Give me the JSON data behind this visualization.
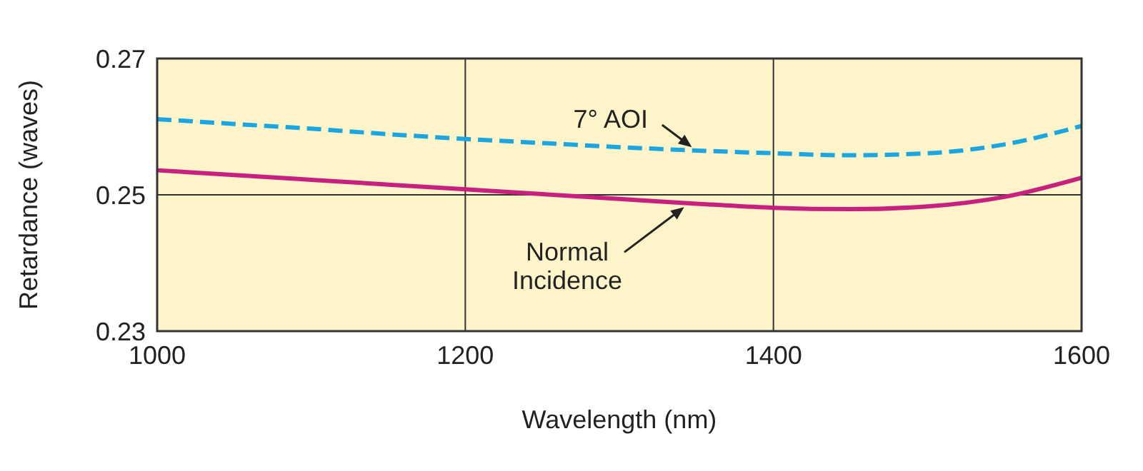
{
  "chart_data": {
    "type": "line",
    "xlabel": "Wavelength (nm)",
    "ylabel": "Retardance (waves)",
    "x": [
      1000,
      1050,
      1100,
      1150,
      1200,
      1250,
      1300,
      1350,
      1400,
      1450,
      1500,
      1550,
      1600
    ],
    "series": [
      {
        "values": [
          0.2611,
          0.2604,
          0.2597,
          0.2589,
          0.2582,
          0.2576,
          0.257,
          0.2565,
          0.2561,
          0.2558,
          0.2561,
          0.2574,
          0.2601
        ],
        "color": "#1ba5e1",
        "line_style": "dashed"
      },
      {
        "values": [
          0.2536,
          0.2529,
          0.2522,
          0.2515,
          0.2508,
          0.2501,
          0.2494,
          0.2487,
          0.2481,
          0.2479,
          0.2483,
          0.2497,
          0.2525
        ],
        "color": "#c8207f",
        "line_style": "solid"
      }
    ],
    "annotations": [
      {
        "text": "7° AOI",
        "x": 1350,
        "y": 0.2565
      },
      {
        "text": "Normal Incidence",
        "x": 1345,
        "y": 0.2487
      }
    ],
    "xlim": [
      1000,
      1600
    ],
    "ylim": [
      0.23,
      0.27
    ],
    "xticks": [
      1000,
      1200,
      1400,
      1600
    ],
    "yticks": [
      0.23,
      0.25,
      0.27
    ],
    "grid": true
  }
}
